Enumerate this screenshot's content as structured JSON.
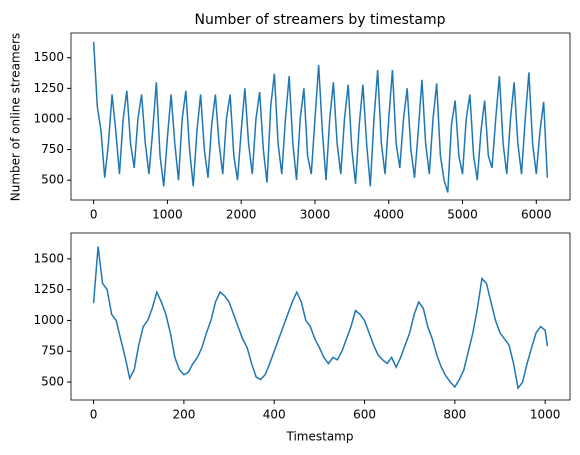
{
  "chart_data": [
    {
      "type": "line",
      "title": "Number of streamers by timestamp",
      "y_label": "Number of online streamers",
      "xlim": [
        -307,
        6457
      ],
      "ylim": [
        338,
        1702
      ],
      "xticks": [
        0,
        1000,
        2000,
        3000,
        4000,
        5000,
        6000
      ],
      "yticks": [
        500,
        750,
        1000,
        1250,
        1500
      ],
      "series": [
        {
          "color": "#1f77b4",
          "x": [
            0,
            50,
            100,
            150,
            200,
            250,
            300,
            350,
            400,
            450,
            500,
            550,
            600,
            650,
            700,
            750,
            800,
            850,
            900,
            950,
            1000,
            1050,
            1100,
            1150,
            1200,
            1250,
            1300,
            1350,
            1400,
            1450,
            1500,
            1550,
            1600,
            1650,
            1700,
            1750,
            1800,
            1850,
            1900,
            1950,
            2000,
            2050,
            2100,
            2150,
            2200,
            2250,
            2300,
            2350,
            2400,
            2450,
            2500,
            2550,
            2600,
            2650,
            2700,
            2750,
            2800,
            2850,
            2900,
            2950,
            3000,
            3050,
            3100,
            3150,
            3200,
            3250,
            3300,
            3350,
            3400,
            3450,
            3500,
            3550,
            3600,
            3650,
            3700,
            3750,
            3800,
            3850,
            3900,
            3950,
            4000,
            4050,
            4100,
            4150,
            4200,
            4250,
            4300,
            4350,
            4400,
            4450,
            4500,
            4550,
            4600,
            4650,
            4700,
            4750,
            4800,
            4850,
            4900,
            4950,
            5000,
            5050,
            5100,
            5150,
            5200,
            5250,
            5300,
            5350,
            5400,
            5450,
            5500,
            5550,
            5600,
            5650,
            5700,
            5750,
            5800,
            5850,
            5900,
            5950,
            6000,
            6050,
            6100,
            6150
          ],
          "values": [
            1630,
            1100,
            900,
            520,
            800,
            1200,
            900,
            550,
            1000,
            1230,
            800,
            600,
            1000,
            1200,
            800,
            550,
            900,
            1300,
            700,
            450,
            850,
            1200,
            800,
            500,
            1000,
            1230,
            750,
            450,
            900,
            1200,
            750,
            520,
            950,
            1200,
            800,
            550,
            1000,
            1200,
            700,
            500,
            900,
            1250,
            800,
            550,
            1000,
            1220,
            750,
            480,
            1100,
            1370,
            800,
            550,
            1000,
            1350,
            800,
            500,
            1000,
            1250,
            700,
            550,
            1000,
            1440,
            900,
            500,
            1000,
            1300,
            800,
            550,
            1000,
            1280,
            750,
            470,
            950,
            1280,
            800,
            450,
            1000,
            1400,
            800,
            550,
            1000,
            1400,
            800,
            600,
            1000,
            1250,
            750,
            520,
            900,
            1320,
            800,
            550,
            1000,
            1290,
            700,
            500,
            400,
            950,
            1150,
            700,
            550,
            1000,
            1200,
            700,
            500,
            900,
            1150,
            700,
            600,
            1000,
            1350,
            800,
            550,
            1000,
            1300,
            800,
            550,
            1000,
            1380,
            800,
            550,
            900,
            1140,
            520
          ]
        }
      ]
    },
    {
      "type": "line",
      "x_label": "Timestamp",
      "xlim": [
        -50,
        1055
      ],
      "ylim": [
        354,
        1710
      ],
      "xticks": [
        0,
        200,
        400,
        600,
        800,
        1000
      ],
      "yticks": [
        500,
        750,
        1000,
        1250,
        1500
      ],
      "series": [
        {
          "color": "#1f77b4",
          "x": [
            0,
            10,
            20,
            30,
            40,
            50,
            60,
            70,
            80,
            90,
            100,
            110,
            120,
            130,
            140,
            150,
            160,
            170,
            180,
            190,
            200,
            210,
            220,
            230,
            240,
            250,
            260,
            270,
            280,
            290,
            300,
            310,
            320,
            330,
            340,
            350,
            360,
            370,
            380,
            390,
            400,
            410,
            420,
            430,
            440,
            450,
            460,
            470,
            480,
            490,
            500,
            510,
            520,
            530,
            540,
            550,
            560,
            570,
            580,
            590,
            600,
            610,
            620,
            630,
            640,
            650,
            660,
            670,
            680,
            690,
            700,
            710,
            720,
            730,
            740,
            750,
            760,
            770,
            780,
            790,
            800,
            810,
            820,
            830,
            840,
            850,
            860,
            870,
            880,
            890,
            900,
            910,
            920,
            930,
            940,
            950,
            960,
            970,
            980,
            990,
            1000,
            1005
          ],
          "values": [
            1140,
            1600,
            1300,
            1250,
            1050,
            1000,
            850,
            700,
            530,
            600,
            800,
            950,
            1000,
            1100,
            1230,
            1150,
            1050,
            900,
            700,
            600,
            560,
            580,
            650,
            700,
            780,
            900,
            1000,
            1150,
            1230,
            1200,
            1150,
            1050,
            950,
            850,
            780,
            650,
            540,
            520,
            560,
            650,
            750,
            850,
            950,
            1050,
            1150,
            1230,
            1150,
            1000,
            950,
            850,
            780,
            700,
            650,
            700,
            680,
            750,
            850,
            950,
            1080,
            1050,
            1000,
            900,
            800,
            720,
            680,
            650,
            700,
            620,
            700,
            800,
            900,
            1050,
            1150,
            1100,
            950,
            850,
            720,
            620,
            550,
            500,
            460,
            520,
            600,
            750,
            900,
            1100,
            1340,
            1300,
            1150,
            1000,
            900,
            850,
            800,
            650,
            450,
            500,
            650,
            780,
            900,
            950,
            920,
            790
          ]
        }
      ]
    }
  ]
}
